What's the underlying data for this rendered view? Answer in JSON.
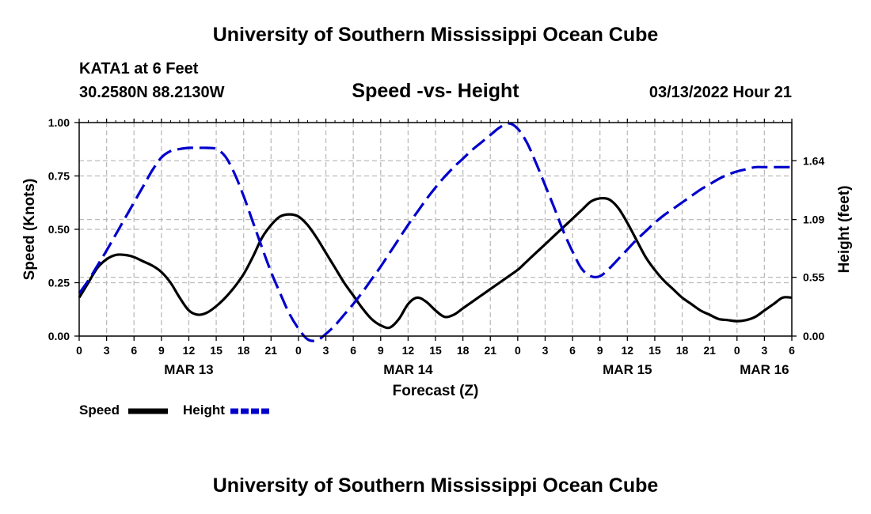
{
  "header": {
    "title": "University of Southern Mississippi Ocean Cube",
    "station": "KATA1 at 6 Feet",
    "coordinates": "30.2580N  88.2130W",
    "subtitle": "Speed -vs- Height",
    "datetime": "03/13/2022 Hour 21"
  },
  "footer": {
    "title": "University of Southern Mississippi Ocean Cube"
  },
  "legend": {
    "speed_label": "Speed",
    "height_label": "Height"
  },
  "colors": {
    "speed": "#000000",
    "height": "#0000cc",
    "grid": "#bbbbbb"
  },
  "chart_data": {
    "type": "line",
    "title": "Speed -vs- Height",
    "xlabel": "Forecast (Z)",
    "ylabel": "Speed (Knots)",
    "y2label": "Height (feet)",
    "x_unit": "forecast hours from MAR 13 00Z",
    "xlim": [
      0,
      78
    ],
    "x_ticks": [
      0,
      3,
      6,
      9,
      12,
      15,
      18,
      21,
      24,
      27,
      30,
      33,
      36,
      39,
      42,
      45,
      48,
      51,
      54,
      57,
      60,
      63,
      66,
      69,
      72,
      75,
      78
    ],
    "x_tick_labels": [
      "0",
      "3",
      "6",
      "9",
      "12",
      "15",
      "18",
      "21",
      "0",
      "3",
      "6",
      "9",
      "12",
      "15",
      "18",
      "21",
      "0",
      "3",
      "6",
      "9",
      "12",
      "15",
      "18",
      "21",
      "0",
      "3",
      "6"
    ],
    "date_labels": [
      {
        "label": "MAR 13",
        "x": 12
      },
      {
        "label": "MAR 14",
        "x": 36
      },
      {
        "label": "MAR 15",
        "x": 60
      },
      {
        "label": "MAR 16",
        "x": 75
      }
    ],
    "ylim": [
      0,
      1.0
    ],
    "y_ticks": [
      0,
      0.25,
      0.5,
      0.75,
      1.0
    ],
    "y_tick_labels": [
      "0.00",
      "0.25",
      "0.50",
      "0.75",
      "1.00"
    ],
    "y2lim": [
      0,
      1.997
    ],
    "y2_ticks": [
      0,
      0.55,
      1.09,
      1.64
    ],
    "y2_tick_labels": [
      "0.00",
      "0.55",
      "1.09",
      "1.64"
    ],
    "grid": true,
    "legend_position": "bottom-left",
    "series": [
      {
        "name": "Speed",
        "axis": "left",
        "style": "solid",
        "x": [
          0,
          1,
          2,
          3,
          4,
          5,
          6,
          7,
          8,
          9,
          10,
          11,
          12,
          13,
          14,
          15,
          16,
          17,
          18,
          19,
          20,
          21,
          22,
          23,
          24,
          25,
          26,
          27,
          28,
          29,
          30,
          31,
          32,
          33,
          34,
          35,
          36,
          37,
          38,
          39,
          40,
          41,
          42,
          43,
          44,
          45,
          46,
          47,
          48,
          49,
          50,
          51,
          52,
          53,
          54,
          55,
          56,
          57,
          58,
          59,
          60,
          61,
          62,
          63,
          64,
          65,
          66,
          67,
          68,
          69,
          70,
          71,
          72,
          73,
          74,
          75,
          76,
          77,
          78
        ],
        "values": [
          0.18,
          0.25,
          0.32,
          0.36,
          0.38,
          0.38,
          0.37,
          0.35,
          0.33,
          0.3,
          0.25,
          0.18,
          0.12,
          0.1,
          0.11,
          0.14,
          0.18,
          0.23,
          0.29,
          0.37,
          0.46,
          0.52,
          0.56,
          0.57,
          0.56,
          0.52,
          0.46,
          0.39,
          0.32,
          0.25,
          0.19,
          0.13,
          0.08,
          0.05,
          0.04,
          0.08,
          0.15,
          0.18,
          0.16,
          0.12,
          0.09,
          0.1,
          0.13,
          0.16,
          0.19,
          0.22,
          0.25,
          0.28,
          0.31,
          0.35,
          0.39,
          0.43,
          0.47,
          0.51,
          0.55,
          0.59,
          0.63,
          0.645,
          0.64,
          0.6,
          0.53,
          0.45,
          0.37,
          0.31,
          0.26,
          0.22,
          0.18,
          0.15,
          0.12,
          0.1,
          0.08,
          0.075,
          0.07,
          0.075,
          0.09,
          0.12,
          0.15,
          0.18,
          0.18
        ]
      },
      {
        "name": "Height",
        "axis": "right",
        "style": "dashed",
        "x": [
          0,
          1,
          2,
          3,
          4,
          5,
          6,
          7,
          8,
          9,
          10,
          11,
          12,
          13,
          14,
          15,
          16,
          17,
          18,
          19,
          20,
          21,
          22,
          23,
          24,
          25,
          26,
          27,
          28,
          29,
          30,
          31,
          32,
          33,
          34,
          35,
          36,
          37,
          38,
          39,
          40,
          41,
          42,
          43,
          44,
          45,
          46,
          47,
          48,
          49,
          50,
          51,
          52,
          53,
          54,
          55,
          56,
          57,
          58,
          59,
          60,
          61,
          62,
          63,
          64,
          65,
          66,
          67,
          68,
          69,
          70,
          71,
          72,
          73,
          74,
          75,
          76,
          77,
          78
        ],
        "values": [
          0.4,
          0.52,
          0.66,
          0.8,
          0.95,
          1.1,
          1.25,
          1.4,
          1.55,
          1.67,
          1.73,
          1.75,
          1.76,
          1.76,
          1.76,
          1.75,
          1.68,
          1.52,
          1.31,
          1.07,
          0.83,
          0.6,
          0.4,
          0.21,
          0.07,
          -0.03,
          -0.04,
          0.02,
          0.1,
          0.2,
          0.3,
          0.41,
          0.53,
          0.65,
          0.78,
          0.91,
          1.04,
          1.16,
          1.28,
          1.39,
          1.49,
          1.58,
          1.66,
          1.74,
          1.81,
          1.88,
          1.95,
          1.99,
          1.94,
          1.81,
          1.62,
          1.41,
          1.2,
          0.98,
          0.79,
          0.63,
          0.56,
          0.56,
          0.63,
          0.72,
          0.81,
          0.9,
          0.98,
          1.06,
          1.13,
          1.19,
          1.25,
          1.31,
          1.37,
          1.42,
          1.47,
          1.51,
          1.54,
          1.56,
          1.58,
          1.58,
          1.58,
          1.58,
          1.58
        ]
      }
    ]
  }
}
